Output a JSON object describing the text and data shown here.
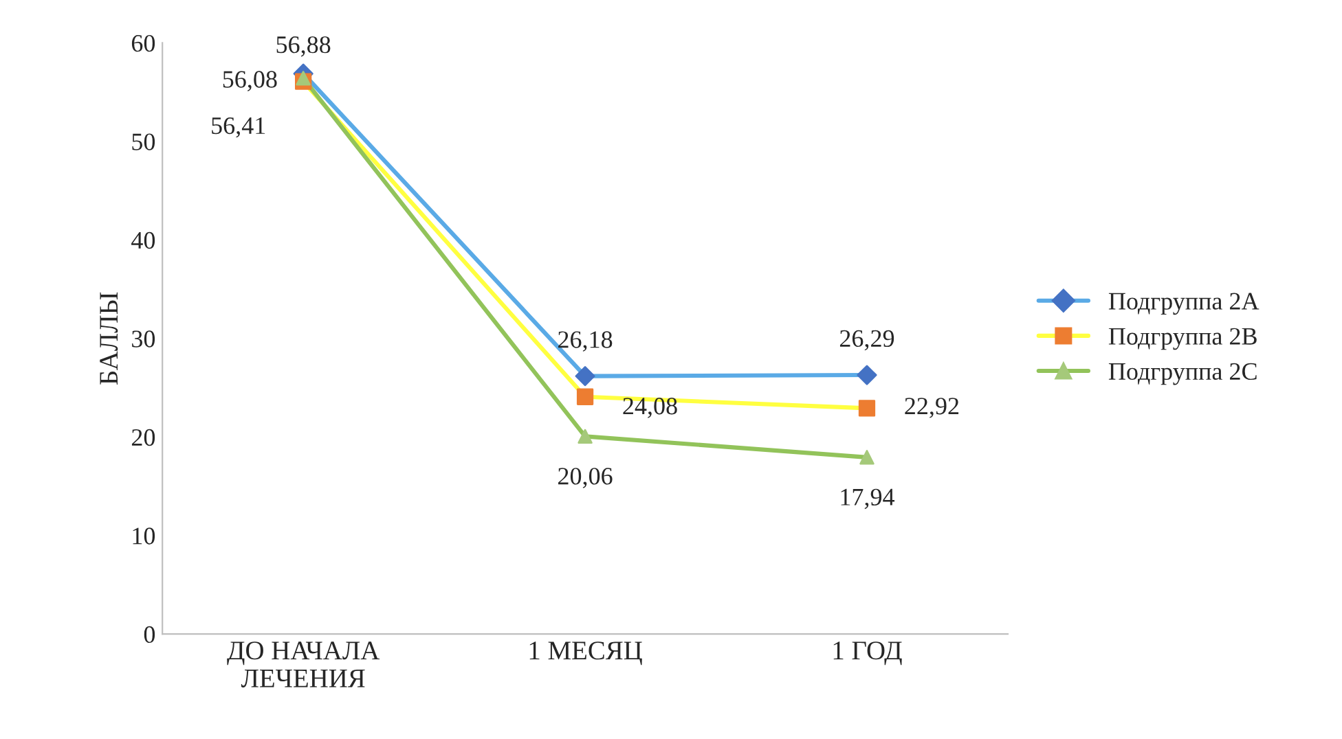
{
  "chart_data": {
    "type": "line",
    "ylabel": "БАЛЛЫ",
    "categories": [
      "ДО НАЧАЛА\nЛЕЧЕНИЯ",
      "1 МЕСЯЦ",
      "1 ГОД"
    ],
    "series": [
      {
        "name": "Подгруппа 2A",
        "color": "#5aaae6",
        "colors": [
          "#4472c4",
          "#4472c4",
          "#4472c4"
        ],
        "marker": "diamond",
        "values": [
          56.88,
          26.18,
          26.29
        ],
        "value_labels": [
          "56,88",
          "26,18",
          "26,29"
        ]
      },
      {
        "name": "Подгруппа 2B",
        "color": "#ffff40",
        "colors": [
          "#ed7d31",
          "#ed7d31",
          "#ed7d31"
        ],
        "marker": "square",
        "values": [
          56.08,
          24.08,
          22.92
        ],
        "value_labels": [
          "56,08",
          "24,08",
          "22,92"
        ]
      },
      {
        "name": "Подгруппа 2C",
        "color": "#92c35a",
        "colors": [
          "#a5c97a",
          "#a5c97a",
          "#a5c97a"
        ],
        "marker": "triangle",
        "values": [
          56.41,
          20.06,
          17.94
        ],
        "value_labels": [
          "56,41",
          "20,06",
          "17,94"
        ]
      }
    ],
    "ylim": [
      0,
      60
    ],
    "yticks": [
      0,
      10,
      20,
      30,
      40,
      50,
      60
    ],
    "grid": false,
    "legend": "right"
  }
}
